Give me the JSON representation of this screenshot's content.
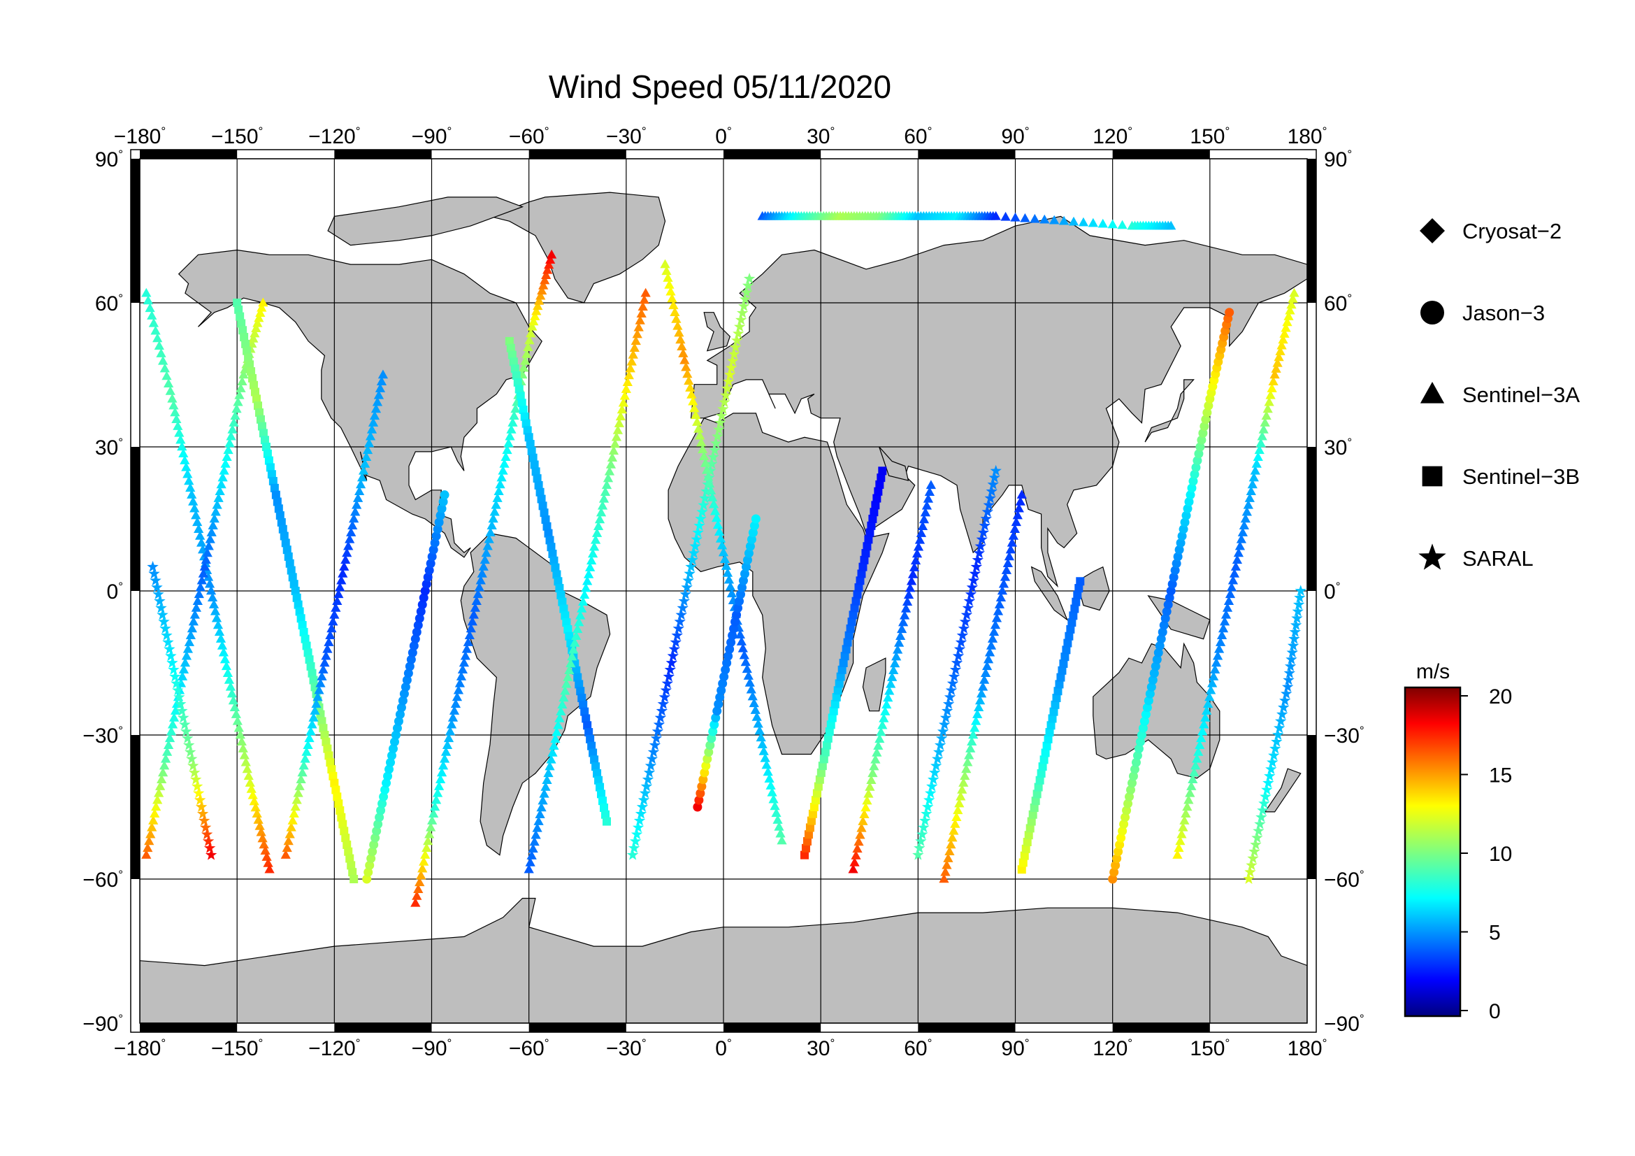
{
  "title": "Wind Speed 05/11/2020",
  "axes": {
    "lon_ticks": [
      {
        "value": -180,
        "label": "−180"
      },
      {
        "value": -150,
        "label": "−150"
      },
      {
        "value": -120,
        "label": "−120"
      },
      {
        "value": -90,
        "label": "−90"
      },
      {
        "value": -60,
        "label": "−60"
      },
      {
        "value": -30,
        "label": "−30"
      },
      {
        "value": 0,
        "label": "0"
      },
      {
        "value": 30,
        "label": "30"
      },
      {
        "value": 60,
        "label": "60"
      },
      {
        "value": 90,
        "label": "90"
      },
      {
        "value": 120,
        "label": "120"
      },
      {
        "value": 150,
        "label": "150"
      },
      {
        "value": 180,
        "label": "180"
      }
    ],
    "lat_ticks": [
      {
        "value": 90,
        "label": "90"
      },
      {
        "value": 60,
        "label": "60"
      },
      {
        "value": 30,
        "label": "30"
      },
      {
        "value": 0,
        "label": "0"
      },
      {
        "value": -30,
        "label": "−30"
      },
      {
        "value": -60,
        "label": "−60"
      },
      {
        "value": -90,
        "label": "−90"
      }
    ],
    "degree_symbol": "°"
  },
  "legend": [
    {
      "label": "Cryosat−2",
      "marker": "diamond-icon"
    },
    {
      "label": "Jason−3",
      "marker": "circle-icon"
    },
    {
      "label": "Sentinel−3A",
      "marker": "triangle-icon"
    },
    {
      "label": "Sentinel−3B",
      "marker": "square-icon"
    },
    {
      "label": "SARAL",
      "marker": "star-icon"
    }
  ],
  "colorbar": {
    "unit": "m/s",
    "ticks": [
      {
        "value": 20,
        "label": "20"
      },
      {
        "value": 15,
        "label": "15"
      },
      {
        "value": 10,
        "label": "10"
      },
      {
        "value": 5,
        "label": "5"
      },
      {
        "value": 0,
        "label": "0"
      }
    ],
    "range": [
      0,
      20
    ]
  },
  "chart_data": {
    "type": "scatter",
    "title": "Wind Speed 05/11/2020",
    "xlim": [
      -180,
      180
    ],
    "ylim": [
      -90,
      90
    ],
    "grid": true,
    "legend_position": "right",
    "colormap": [
      "#00007f",
      "#0000ff",
      "#007fff",
      "#00ffff",
      "#7fff7f",
      "#ffff00",
      "#ff7f00",
      "#ff0000",
      "#7f0000"
    ],
    "land_color": "#bebebe",
    "tracks": [
      {
        "satellite": "Sentinel−3A",
        "points": [
          [
            -178,
            62,
            8
          ],
          [
            -170,
            40,
            9
          ],
          [
            -164,
            20,
            6
          ],
          [
            -158,
            0,
            5
          ],
          [
            -152,
            -20,
            8
          ],
          [
            -146,
            -40,
            12
          ],
          [
            -140,
            -58,
            17
          ]
        ]
      },
      {
        "satellite": "Sentinel−3A",
        "points": [
          [
            -178,
            -55,
            16
          ],
          [
            -172,
            -35,
            9
          ],
          [
            -166,
            -15,
            6
          ],
          [
            -160,
            5,
            4
          ],
          [
            -154,
            25,
            7
          ],
          [
            -148,
            45,
            10
          ],
          [
            -142,
            60,
            13
          ]
        ]
      },
      {
        "satellite": "SARAL",
        "points": [
          [
            -176,
            5,
            5
          ],
          [
            -170,
            -15,
            7
          ],
          [
            -164,
            -35,
            10
          ],
          [
            -158,
            -55,
            18
          ]
        ]
      },
      {
        "satellite": "Sentinel−3B",
        "points": [
          [
            -150,
            60,
            9
          ],
          [
            -144,
            40,
            11
          ],
          [
            -138,
            20,
            5
          ],
          [
            -132,
            0,
            6
          ],
          [
            -126,
            -20,
            9
          ],
          [
            -120,
            -40,
            13
          ],
          [
            -114,
            -60,
            11
          ]
        ]
      },
      {
        "satellite": "Sentinel−3A",
        "points": [
          [
            -135,
            -55,
            16
          ],
          [
            -129,
            -35,
            8
          ],
          [
            -123,
            -15,
            4
          ],
          [
            -117,
            5,
            3
          ],
          [
            -111,
            25,
            6
          ],
          [
            -105,
            45,
            5
          ]
        ]
      },
      {
        "satellite": "Jason−3",
        "points": [
          [
            -110,
            -60,
            12
          ],
          [
            -104,
            -40,
            7
          ],
          [
            -98,
            -20,
            5
          ],
          [
            -92,
            0,
            3
          ],
          [
            -86,
            20,
            6
          ]
        ]
      },
      {
        "satellite": "Sentinel−3A",
        "points": [
          [
            -95,
            -65,
            17
          ],
          [
            -89,
            -45,
            8
          ],
          [
            -83,
            -25,
            5
          ],
          [
            -77,
            -5,
            4
          ],
          [
            -71,
            15,
            6
          ],
          [
            -65,
            35,
            8
          ],
          [
            -59,
            55,
            12
          ],
          [
            -53,
            70,
            18
          ]
        ]
      },
      {
        "satellite": "Sentinel−3B",
        "points": [
          [
            -66,
            52,
            10
          ],
          [
            -60,
            32,
            6
          ],
          [
            -54,
            12,
            5
          ],
          [
            -48,
            -8,
            7
          ],
          [
            -42,
            -28,
            4
          ],
          [
            -36,
            -48,
            8
          ]
        ]
      },
      {
        "satellite": "Sentinel−3A",
        "points": [
          [
            -60,
            -58,
            4
          ],
          [
            -54,
            -38,
            6
          ],
          [
            -48,
            -18,
            9
          ],
          [
            -42,
            2,
            7
          ],
          [
            -36,
            22,
            9
          ],
          [
            -30,
            42,
            13
          ],
          [
            -24,
            62,
            16
          ]
        ]
      },
      {
        "satellite": "SARAL",
        "points": [
          [
            -28,
            -55,
            8
          ],
          [
            -22,
            -35,
            5
          ],
          [
            -16,
            -15,
            3
          ],
          [
            -10,
            5,
            6
          ],
          [
            -4,
            25,
            9
          ],
          [
            2,
            45,
            12
          ],
          [
            8,
            65,
            10
          ]
        ]
      },
      {
        "satellite": "Sentinel−3A",
        "points": [
          [
            -18,
            68,
            12
          ],
          [
            -12,
            48,
            15
          ],
          [
            -6,
            28,
            10
          ],
          [
            0,
            8,
            6
          ],
          [
            6,
            -12,
            4
          ],
          [
            12,
            -32,
            6
          ],
          [
            18,
            -52,
            9
          ]
        ]
      },
      {
        "satellite": "Jason−3",
        "points": [
          [
            -8,
            -45,
            18
          ],
          [
            -2,
            -25,
            5
          ],
          [
            4,
            -5,
            4
          ],
          [
            10,
            15,
            7
          ]
        ]
      },
      {
        "satellite": "Sentinel−3B",
        "points": [
          [
            25,
            -55,
            17
          ],
          [
            31,
            -35,
            9
          ],
          [
            37,
            -15,
            5
          ],
          [
            43,
            5,
            3
          ],
          [
            49,
            25,
            2
          ]
        ]
      },
      {
        "satellite": "Sentinel−3A",
        "points": [
          [
            40,
            -58,
            18
          ],
          [
            46,
            -38,
            10
          ],
          [
            52,
            -18,
            6
          ],
          [
            58,
            2,
            3
          ],
          [
            64,
            22,
            4
          ]
        ]
      },
      {
        "satellite": "SARAL",
        "points": [
          [
            60,
            -55,
            9
          ],
          [
            66,
            -35,
            6
          ],
          [
            72,
            -15,
            4
          ],
          [
            78,
            5,
            3
          ],
          [
            84,
            25,
            5
          ]
        ]
      },
      {
        "satellite": "Sentinel−3A",
        "points": [
          [
            68,
            -60,
            16
          ],
          [
            74,
            -40,
            11
          ],
          [
            80,
            -20,
            5
          ],
          [
            86,
            0,
            4
          ],
          [
            92,
            20,
            3
          ]
        ]
      },
      {
        "satellite": "Sentinel−3B",
        "points": [
          [
            92,
            -58,
            13
          ],
          [
            98,
            -38,
            8
          ],
          [
            104,
            -18,
            5
          ],
          [
            110,
            2,
            4
          ]
        ]
      },
      {
        "satellite": "Jason−3",
        "points": [
          [
            120,
            -60,
            15
          ],
          [
            126,
            -40,
            10
          ],
          [
            132,
            -20,
            6
          ],
          [
            138,
            0,
            4
          ],
          [
            144,
            20,
            7
          ],
          [
            150,
            40,
            12
          ],
          [
            156,
            58,
            16
          ]
        ]
      },
      {
        "satellite": "Sentinel−3A",
        "points": [
          [
            140,
            -55,
            13
          ],
          [
            146,
            -35,
            8
          ],
          [
            152,
            -15,
            5
          ],
          [
            158,
            5,
            4
          ],
          [
            164,
            25,
            6
          ],
          [
            170,
            45,
            14
          ],
          [
            176,
            62,
            12
          ]
        ]
      },
      {
        "satellite": "SARAL",
        "points": [
          [
            162,
            -60,
            12
          ],
          [
            168,
            -40,
            7
          ],
          [
            174,
            -20,
            5
          ],
          [
            178,
            0,
            6
          ]
        ]
      },
      {
        "satellite": "Sentinel−3A",
        "points": [
          [
            12,
            78,
            4
          ],
          [
            24,
            78,
            8
          ],
          [
            36,
            78,
            11
          ],
          [
            48,
            78,
            10
          ],
          [
            60,
            78,
            6
          ],
          [
            72,
            78,
            7
          ],
          [
            84,
            78,
            3
          ],
          [
            126,
            76,
            8
          ],
          [
            138,
            76,
            6
          ]
        ]
      }
    ]
  }
}
